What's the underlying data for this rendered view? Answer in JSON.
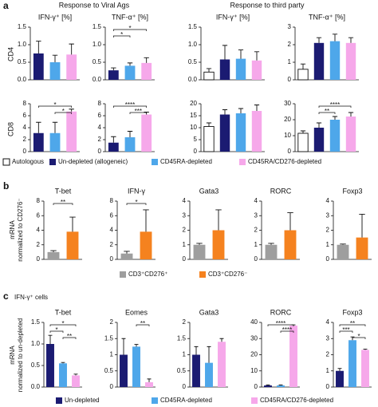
{
  "figure": {
    "panel_labels": [
      "a",
      "b",
      "c"
    ],
    "headers": [
      "Response to Viral Ags",
      "Response to third party"
    ],
    "row_labels": [
      "CD4",
      "CD8"
    ],
    "b_ylabel": [
      "mRNA",
      "normalized to CD276⁻"
    ],
    "c_subtitle": "IFN-γ⁺ cells",
    "c_ylabel": [
      "mRNA",
      "normalized to un-depleted"
    ],
    "legends": [
      [
        {
          "name": "Autologous",
          "color": "#ffffff"
        },
        {
          "name": "Un-depleted (allogeneic)",
          "color": "#1b1b72"
        },
        {
          "name": "CD45RA-depleted",
          "color": "#4ea7ea"
        },
        {
          "name": "CD45RA/CD276-depleted",
          "color": "#f6a8ea"
        }
      ],
      [
        {
          "name": "CD3⁺CD276⁺",
          "color": "#9e9e9e"
        },
        {
          "name": "CD3⁺CD276⁻",
          "color": "#f5821f"
        }
      ],
      [
        {
          "name": "Un-depleted",
          "color": "#1b1b72"
        },
        {
          "name": "CD45RA-depleted",
          "color": "#4ea7ea"
        },
        {
          "name": "CD45RA/CD276-depleted",
          "color": "#f6a8ea"
        }
      ]
    ]
  },
  "chart_data": [
    {
      "type": "bar",
      "title": "IFN-γ⁺ [%]",
      "values": [
        0.75,
        0.5,
        0.72
      ],
      "errors": [
        0.35,
        0.2,
        0.3
      ],
      "colors": [
        "#1b1b72",
        "#4ea7ea",
        "#f6a8ea"
      ],
      "ylim": [
        0,
        1.5
      ],
      "yticks": [
        {
          "value": 0,
          "label": "0.0"
        },
        0.5,
        {
          "value": 1,
          "label": "1.0"
        },
        1.5
      ],
      "significance": []
    },
    {
      "type": "bar",
      "title": "TNF-α⁺ [%]",
      "values": [
        0.27,
        0.4,
        0.48
      ],
      "errors": [
        0.07,
        0.08,
        0.15
      ],
      "colors": [
        "#1b1b72",
        "#4ea7ea",
        "#f6a8ea"
      ],
      "ylim": [
        0,
        1.5
      ],
      "yticks": [
        {
          "value": 0,
          "label": "0.0"
        },
        0.5,
        {
          "value": 1,
          "label": "1.0"
        },
        1.5
      ],
      "significance": [
        {
          "label": "*",
          "between": [
            0,
            2
          ]
        },
        {
          "label": "*",
          "between": [
            0,
            1
          ]
        }
      ]
    },
    {
      "type": "bar",
      "title": "IFN-γ⁺ [%]",
      "values": [
        0.22,
        0.58,
        0.6,
        0.55
      ],
      "errors": [
        0.1,
        0.4,
        0.25,
        0.25
      ],
      "colors": [
        "#ffffff",
        "#1b1b72",
        "#4ea7ea",
        "#f6a8ea"
      ],
      "ylim": [
        0,
        1.5
      ],
      "yticks": [
        {
          "value": 0,
          "label": "0.0"
        },
        0.5,
        {
          "value": 1,
          "label": "1.0"
        },
        1.5
      ],
      "significance": []
    },
    {
      "type": "bar",
      "title": "TNF-α⁺ [%]",
      "values": [
        0.6,
        2.1,
        2.2,
        2.1
      ],
      "errors": [
        0.3,
        0.3,
        0.4,
        0.3
      ],
      "colors": [
        "#ffffff",
        "#1b1b72",
        "#4ea7ea",
        "#f6a8ea"
      ],
      "ylim": [
        0,
        3
      ],
      "yticks": [
        0,
        1,
        2,
        3
      ],
      "significance": []
    },
    {
      "type": "bar",
      "title": "",
      "values": [
        3.1,
        3.1,
        6.7
      ],
      "errors": [
        1.8,
        1.8,
        0.4
      ],
      "colors": [
        "#1b1b72",
        "#4ea7ea",
        "#f6a8ea"
      ],
      "ylim": [
        0,
        8
      ],
      "yticks": [
        0,
        2,
        4,
        6,
        8
      ],
      "significance": [
        {
          "label": "*",
          "between": [
            0,
            2
          ]
        },
        {
          "label": "*",
          "between": [
            1,
            2
          ]
        }
      ]
    },
    {
      "type": "bar",
      "title": "",
      "values": [
        1.5,
        2.4,
        6.2
      ],
      "errors": [
        1.0,
        1.0,
        0.4
      ],
      "colors": [
        "#1b1b72",
        "#4ea7ea",
        "#f6a8ea"
      ],
      "ylim": [
        0,
        8
      ],
      "yticks": [
        0,
        2,
        4,
        6,
        8
      ],
      "significance": [
        {
          "label": "****",
          "between": [
            0,
            2
          ]
        },
        {
          "label": "***",
          "between": [
            1,
            2
          ]
        }
      ]
    },
    {
      "type": "bar",
      "title": "",
      "values": [
        10.5,
        15.5,
        16,
        17
      ],
      "errors": [
        1.5,
        2,
        2,
        2.5
      ],
      "colors": [
        "#ffffff",
        "#1b1b72",
        "#4ea7ea",
        "#f6a8ea"
      ],
      "ylim": [
        0,
        20
      ],
      "yticks": [
        0,
        5,
        10,
        15,
        20
      ],
      "significance": []
    },
    {
      "type": "bar",
      "title": "",
      "values": [
        11.5,
        15,
        20,
        22
      ],
      "errors": [
        1.5,
        3,
        2,
        2.5
      ],
      "colors": [
        "#ffffff",
        "#1b1b72",
        "#4ea7ea",
        "#f6a8ea"
      ],
      "ylim": [
        0,
        30
      ],
      "yticks": [
        0,
        10,
        20,
        30
      ],
      "significance": [
        {
          "label": "****",
          "between": [
            1,
            3
          ]
        },
        {
          "label": "**",
          "between": [
            1,
            2
          ]
        }
      ]
    },
    {
      "type": "bar",
      "title": "T-bet",
      "values": [
        1.0,
        3.8
      ],
      "errors": [
        0.2,
        2.0
      ],
      "colors": [
        "#9e9e9e",
        "#f5821f"
      ],
      "ylim": [
        0,
        8
      ],
      "yticks": [
        0,
        2,
        4,
        6,
        8
      ],
      "significance": [
        {
          "label": "**",
          "between": [
            0,
            1
          ]
        }
      ]
    },
    {
      "type": "bar",
      "title": "IFN-γ",
      "values": [
        0.8,
        3.8
      ],
      "errors": [
        0.3,
        3.0
      ],
      "colors": [
        "#9e9e9e",
        "#f5821f"
      ],
      "ylim": [
        0,
        8
      ],
      "yticks": [
        0,
        2,
        4,
        6,
        8
      ],
      "significance": [
        {
          "label": "*",
          "between": [
            0,
            1
          ]
        }
      ]
    },
    {
      "type": "bar",
      "title": "Gata3",
      "values": [
        1.0,
        2.0
      ],
      "errors": [
        0.1,
        1.4
      ],
      "colors": [
        "#9e9e9e",
        "#f5821f"
      ],
      "ylim": [
        0,
        4
      ],
      "yticks": [
        0,
        1,
        2,
        3,
        4
      ],
      "significance": []
    },
    {
      "type": "bar",
      "title": "RORC",
      "values": [
        1.0,
        2.0
      ],
      "errors": [
        0.1,
        1.2
      ],
      "colors": [
        "#9e9e9e",
        "#f5821f"
      ],
      "ylim": [
        0,
        4
      ],
      "yticks": [
        0,
        1,
        2,
        3,
        4
      ],
      "significance": []
    },
    {
      "type": "bar",
      "title": "Foxp3",
      "values": [
        1.0,
        1.5
      ],
      "errors": [
        0.05,
        1.6
      ],
      "colors": [
        "#9e9e9e",
        "#f5821f"
      ],
      "ylim": [
        0,
        4
      ],
      "yticks": [
        0,
        1,
        2,
        3,
        4
      ],
      "significance": []
    },
    {
      "type": "bar",
      "title": "T-bet",
      "values": [
        1.0,
        0.55,
        0.27
      ],
      "errors": [
        0.2,
        0.02,
        0.03
      ],
      "colors": [
        "#1b1b72",
        "#4ea7ea",
        "#f6a8ea"
      ],
      "ylim": [
        0,
        1.5
      ],
      "yticks": [
        {
          "value": 0,
          "label": "0.0"
        },
        0.5,
        {
          "value": 1,
          "label": "1.0"
        },
        1.5
      ],
      "significance": [
        {
          "label": "*",
          "between": [
            0,
            2
          ]
        },
        {
          "label": "*",
          "between": [
            0,
            1
          ]
        },
        {
          "label": "**",
          "between": [
            1,
            2
          ]
        }
      ]
    },
    {
      "type": "bar",
      "title": "Eomes",
      "values": [
        1.0,
        1.25,
        0.15
      ],
      "errors": [
        0.5,
        0.07,
        0.1
      ],
      "colors": [
        "#1b1b72",
        "#4ea7ea",
        "#f6a8ea"
      ],
      "ylim": [
        0,
        2
      ],
      "yticks": [
        0,
        0.5,
        1,
        1.5,
        2
      ],
      "significance": [
        {
          "label": "**",
          "between": [
            1,
            2
          ]
        }
      ]
    },
    {
      "type": "bar",
      "title": "Gata3",
      "values": [
        1.0,
        0.75,
        1.4
      ],
      "errors": [
        0.25,
        0.5,
        0.1
      ],
      "colors": [
        "#1b1b72",
        "#4ea7ea",
        "#f6a8ea"
      ],
      "ylim": [
        0,
        2
      ],
      "yticks": [
        0,
        0.5,
        1,
        1.5,
        2
      ],
      "significance": []
    },
    {
      "type": "bar",
      "title": "RORC",
      "values": [
        1,
        1,
        38
      ],
      "errors": [
        0.3,
        0.3,
        0.5
      ],
      "colors": [
        "#1b1b72",
        "#4ea7ea",
        "#f6a8ea"
      ],
      "ylim": [
        0,
        40
      ],
      "yticks": [
        0,
        10,
        20,
        30,
        40
      ],
      "significance": [
        {
          "label": "****",
          "between": [
            0,
            2
          ]
        },
        {
          "label": "****",
          "between": [
            1,
            2
          ]
        }
      ]
    },
    {
      "type": "bar",
      "title": "Foxp3",
      "values": [
        1.0,
        2.9,
        2.3
      ],
      "errors": [
        0.15,
        0.2,
        0.05
      ],
      "colors": [
        "#1b1b72",
        "#4ea7ea",
        "#f6a8ea"
      ],
      "ylim": [
        0,
        4
      ],
      "yticks": [
        0,
        1,
        2,
        3,
        4
      ],
      "significance": [
        {
          "label": "**",
          "between": [
            0,
            2
          ]
        },
        {
          "label": "***",
          "between": [
            0,
            1
          ]
        },
        {
          "label": "*",
          "between": [
            1,
            2
          ]
        }
      ]
    }
  ]
}
